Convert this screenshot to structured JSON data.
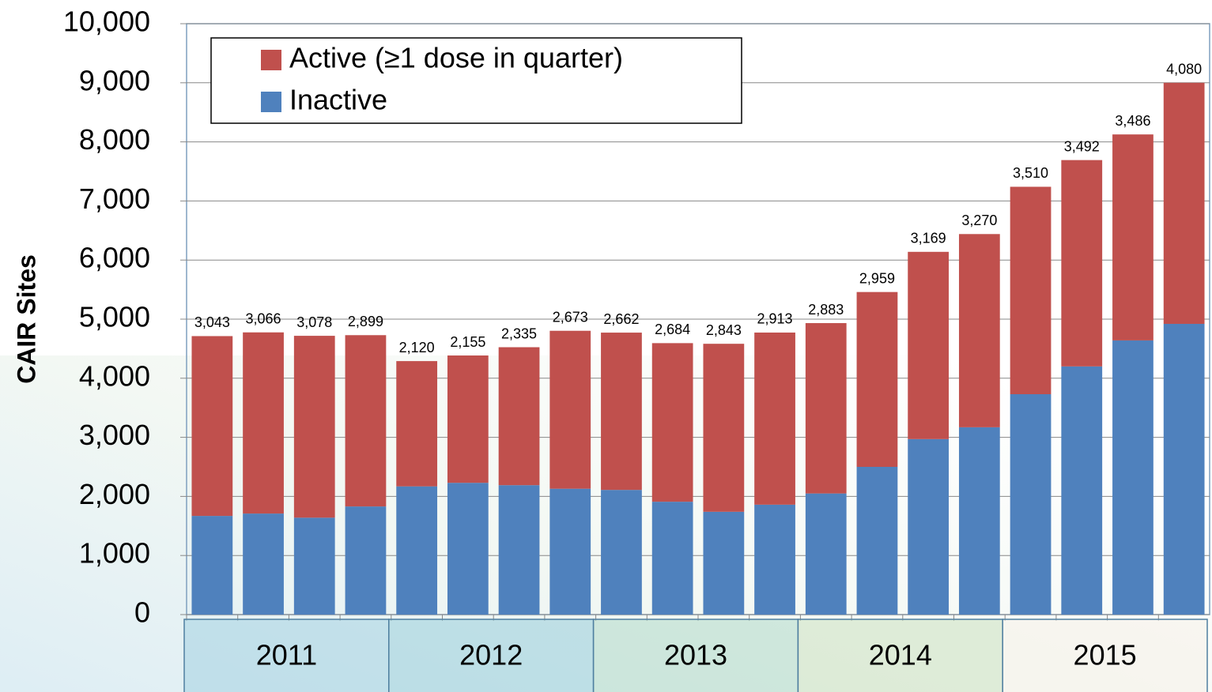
{
  "chart_data": {
    "type": "stacked_bar",
    "y_label": "CAIR Sites",
    "categories": [
      null,
      null,
      null,
      null,
      null,
      null,
      null,
      null,
      null,
      null,
      null,
      null,
      null,
      null,
      null,
      null,
      null,
      null,
      null,
      null
    ],
    "groups": [
      "2011",
      "2012",
      "2013",
      "2014",
      "2015"
    ],
    "series": [
      {
        "name": "Inactive",
        "color": "#4f81bd",
        "values": [
          1670,
          1710,
          1640,
          1830,
          2170,
          2230,
          2190,
          2130,
          2110,
          1910,
          1740,
          1860,
          2050,
          2500,
          2970,
          3170,
          3730,
          4200,
          4640,
          4920
        ]
      },
      {
        "name": "Active (≥1 dose in quarter)",
        "color": "#c0504d",
        "values": [
          3043,
          3066,
          3078,
          2899,
          2120,
          2155,
          2335,
          2673,
          2662,
          2684,
          2843,
          2913,
          2883,
          2959,
          3169,
          3270,
          3510,
          3492,
          3486,
          4080
        ],
        "value_labels": [
          "3,043",
          "3,066",
          "3,078",
          "2,899",
          "2,120",
          "2,155",
          "2,335",
          "2,673",
          "2,662",
          "2,684",
          "2,843",
          "2,913",
          "2,883",
          "2,959",
          "3,169",
          "3,270",
          "3,510",
          "3,492",
          "3,486",
          "4,080"
        ]
      }
    ],
    "ylim": [
      0,
      10000
    ],
    "yticks": [
      0,
      {
        "value": 1000,
        "label": "1,000"
      },
      {
        "value": 2000,
        "label": "2,000"
      },
      {
        "value": 3000,
        "label": "3,000"
      },
      {
        "value": 4000,
        "label": "4,000"
      },
      {
        "value": 5000,
        "label": "5,000"
      },
      {
        "value": 6000,
        "label": "6,000"
      },
      {
        "value": 7000,
        "label": "7,000"
      },
      {
        "value": 8000,
        "label": "8,000"
      },
      {
        "value": 9000,
        "label": "9,000"
      },
      {
        "value": 10000,
        "label": "10,000"
      }
    ],
    "grid": true,
    "legend": "top-left"
  }
}
